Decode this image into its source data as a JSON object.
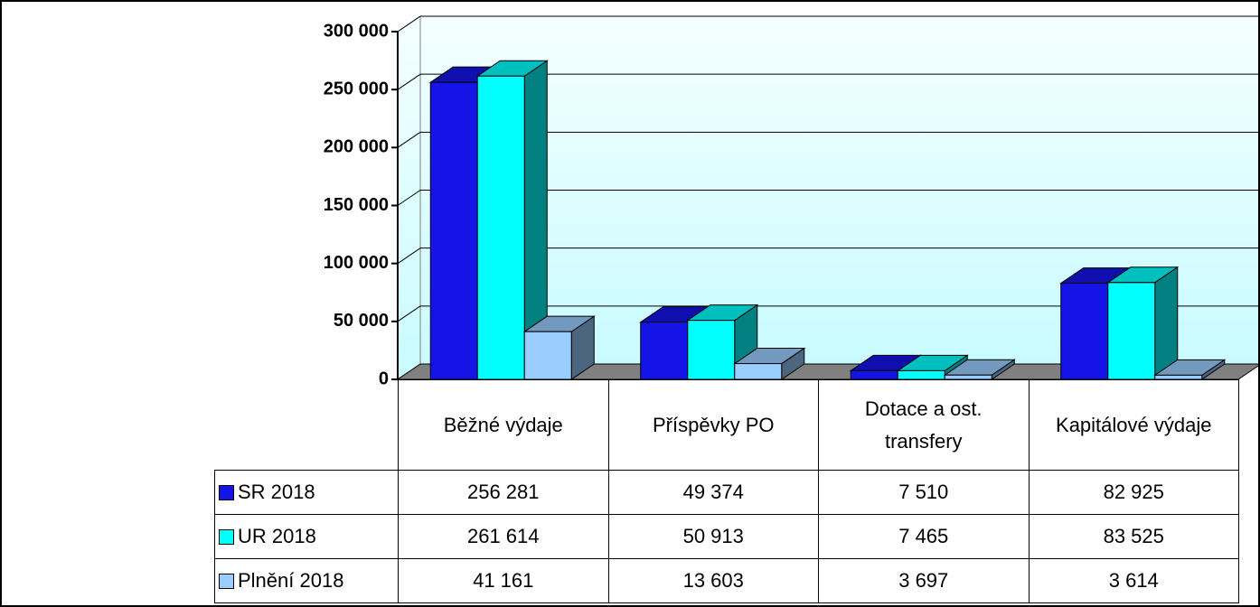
{
  "chart_data": {
    "type": "bar3d",
    "categories": [
      "Běžné výdaje",
      "Příspěvky PO",
      "Dotace a ost. transfery",
      "Kapitálové výdaje"
    ],
    "series": [
      {
        "name": "SR 2018",
        "color": "#1414e6",
        "values": [
          256281,
          49374,
          7510,
          82925
        ],
        "value_labels": [
          "256 281",
          "49 374",
          "7 510",
          "82 925"
        ]
      },
      {
        "name": "UR 2018",
        "color": "#00ffff",
        "values": [
          261614,
          50913,
          7465,
          83525
        ],
        "value_labels": [
          "261 614",
          "50 913",
          "7 465",
          "83 525"
        ]
      },
      {
        "name": "Plnění 2018",
        "color": "#99ccff",
        "values": [
          41161,
          13603,
          3697,
          3614
        ],
        "value_labels": [
          "41 161",
          "13 603",
          "3 697",
          "3 614"
        ]
      }
    ],
    "ylim": [
      0,
      300000
    ],
    "yticks": [
      0,
      {
        "value": 50000,
        "label": "50 000"
      },
      {
        "value": 100000,
        "label": "100 000"
      },
      {
        "value": 150000,
        "label": "150 000"
      },
      {
        "value": 200000,
        "label": "200 000"
      },
      {
        "value": 250000,
        "label": "250 000"
      },
      {
        "value": 300000,
        "label": "300 000"
      }
    ],
    "grid": true
  }
}
